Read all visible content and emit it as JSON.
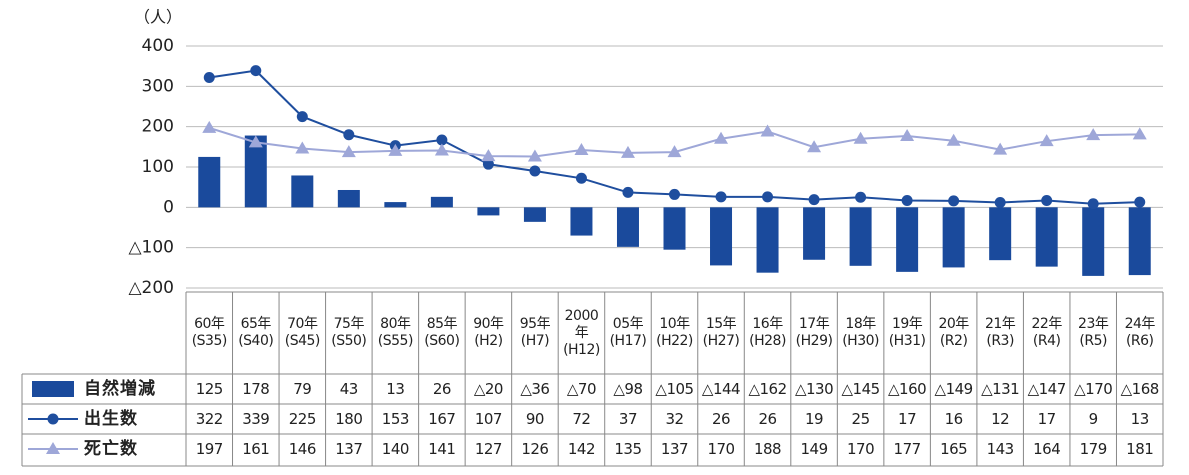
{
  "chart_data": {
    "type": "bar-line",
    "y_unit": "（人）",
    "categories": [
      "60年\n(S35)",
      "65年\n(S40)",
      "70年\n(S45)",
      "75年\n(S50)",
      "80年\n(S55)",
      "85年\n(S60)",
      "90年\n(H2)",
      "95年\n(H7)",
      "2000\n年\n(H12)",
      "05年\n(H17)",
      "10年\n(H22)",
      "15年\n(H27)",
      "16年\n(H28)",
      "17年\n(H29)",
      "18年\n(H30)",
      "19年\n(H31)",
      "20年\n(R2)",
      "21年\n(R3)",
      "22年\n(R4)",
      "23年\n(R5)",
      "24年\n(R6)"
    ],
    "series": [
      {
        "name": "自然増減",
        "type": "bar",
        "color": "#1a4a9c",
        "values": [
          125,
          178,
          79,
          43,
          13,
          26,
          -20,
          -36,
          -70,
          -98,
          -105,
          -144,
          -162,
          -130,
          -145,
          -160,
          -149,
          -131,
          -147,
          -170,
          -168
        ],
        "value_labels": [
          "125",
          "178",
          "79",
          "43",
          "13",
          "26",
          "△20",
          "△36",
          "△70",
          "△98",
          "△105",
          "△144",
          "△162",
          "△130",
          "△145",
          "△160",
          "△149",
          "△131",
          "△147",
          "△170",
          "△168"
        ]
      },
      {
        "name": "出生数",
        "type": "line",
        "marker": "circle",
        "color": "#1f4e9e",
        "values": [
          322,
          339,
          225,
          180,
          153,
          167,
          107,
          90,
          72,
          37,
          32,
          26,
          26,
          19,
          25,
          17,
          16,
          12,
          17,
          9,
          13
        ]
      },
      {
        "name": "死亡数",
        "type": "line",
        "marker": "triangle",
        "color": "#9ea7d8",
        "values": [
          197,
          161,
          146,
          137,
          140,
          141,
          127,
          126,
          142,
          135,
          137,
          170,
          188,
          149,
          170,
          177,
          165,
          143,
          164,
          179,
          181
        ]
      }
    ],
    "ylim": [
      -200,
      400
    ],
    "yticks": [
      400,
      300,
      200,
      100,
      0,
      {
        "value": -100,
        "label": "△100"
      },
      {
        "value": -200,
        "label": "△200"
      }
    ],
    "grid": true
  }
}
